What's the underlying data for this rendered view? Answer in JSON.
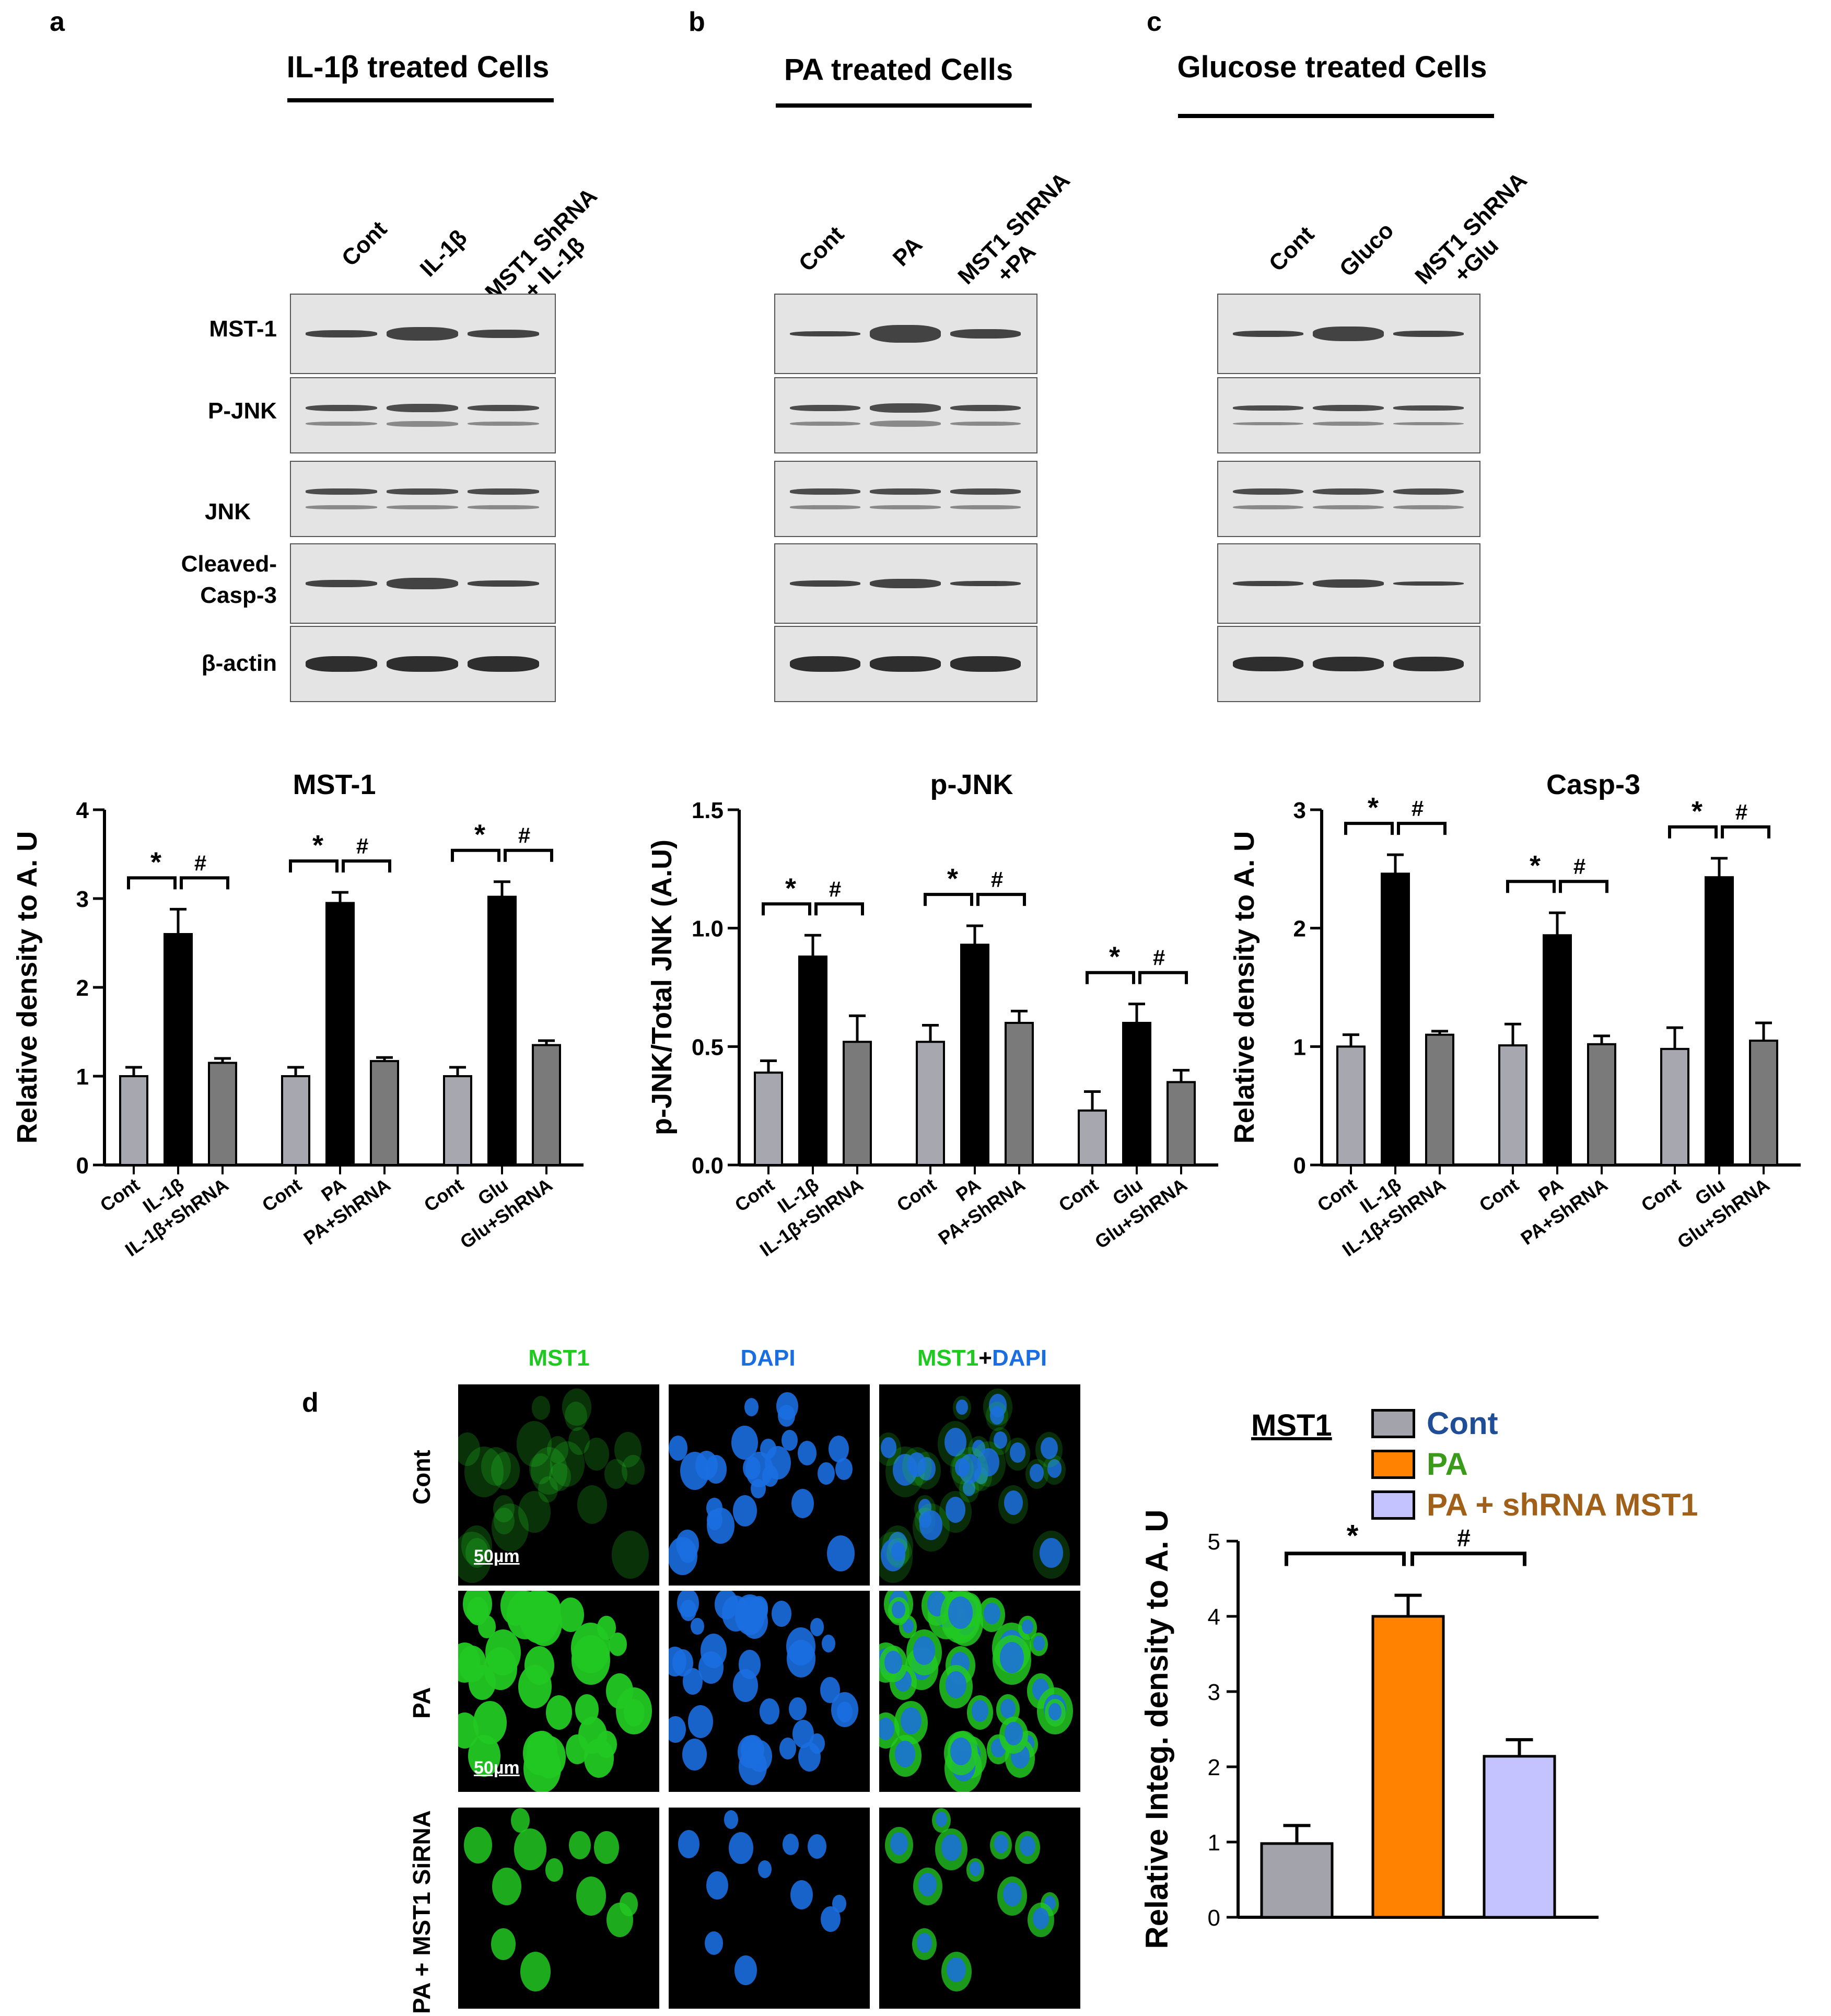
{
  "panels": {
    "a": {
      "letter": "a",
      "title": "IL-1β treated Cells",
      "lanes": [
        [
          "Cont"
        ],
        [
          "IL-1β"
        ],
        [
          "MST1 ShRNA",
          "+ IL-1β"
        ]
      ],
      "rows": [
        "MST-1",
        "P-JNK",
        "JNK",
        "Cleaved-",
        "Casp-3",
        "β-actin"
      ]
    },
    "b": {
      "letter": "b",
      "title": "PA treated Cells",
      "lanes": [
        [
          "Cont"
        ],
        [
          "PA"
        ],
        [
          "MST1 ShRNA",
          "+PA"
        ]
      ]
    },
    "c": {
      "letter": "c",
      "title": "Glucose treated Cells",
      "lanes": [
        [
          "Cont"
        ],
        [
          "Gluco"
        ],
        [
          "MST1 ShRNA",
          "+Glu"
        ]
      ]
    }
  },
  "colors": {
    "cont_bar": "#a7a7b0",
    "treat_bar": "#000000",
    "shrna_bar": "#7a7a7a",
    "d_cont": "#a3a3ab",
    "d_pa": "#ff8200",
    "d_shrna": "#c4c2ff",
    "legend_cont_text": "#1f4e96",
    "legend_pa_text": "#3a9a1a",
    "legend_shrna_text": "#a0601a",
    "mst1_green": "#22c822",
    "dapi_blue": "#1b6ee0"
  },
  "chart_data": [
    {
      "type": "bar",
      "title": "MST-1",
      "ylabel": "Relative density to A. U",
      "ylim": [
        0,
        4
      ],
      "yticks": [
        "0",
        "1",
        "2",
        "3",
        "4"
      ],
      "groups": [
        {
          "labels": [
            "Cont",
            "IL-1β",
            "IL-1β+ShRNA"
          ],
          "values": [
            1.0,
            2.6,
            1.15
          ],
          "errors": [
            0.1,
            0.28,
            0.05
          ],
          "sig": [
            "*",
            "#"
          ]
        },
        {
          "labels": [
            "Cont",
            "PA",
            "PA+ShRNA"
          ],
          "values": [
            1.0,
            2.95,
            1.17
          ],
          "errors": [
            0.1,
            0.12,
            0.04
          ],
          "sig": [
            "*",
            "#"
          ]
        },
        {
          "labels": [
            "Cont",
            "Glu",
            "Glu+ShRNA"
          ],
          "values": [
            1.0,
            3.02,
            1.35
          ],
          "errors": [
            0.1,
            0.17,
            0.05
          ],
          "sig": [
            "*",
            "#"
          ]
        }
      ]
    },
    {
      "type": "bar",
      "title": "p-JNK",
      "ylabel": "p-JNK/Total JNK (A.U)",
      "ylim": [
        0,
        1.5
      ],
      "yticks": [
        "0.0",
        "0.5",
        "1.0",
        "1.5"
      ],
      "groups": [
        {
          "labels": [
            "Cont",
            "IL-1β",
            "IL-1β+ShRNA"
          ],
          "values": [
            0.39,
            0.88,
            0.52
          ],
          "errors": [
            0.05,
            0.09,
            0.11
          ],
          "sig": [
            "*",
            "#"
          ]
        },
        {
          "labels": [
            "Cont",
            "PA",
            "PA+ShRNA"
          ],
          "values": [
            0.52,
            0.93,
            0.6
          ],
          "errors": [
            0.07,
            0.08,
            0.05
          ],
          "sig": [
            "*",
            "#"
          ]
        },
        {
          "labels": [
            "Cont",
            "Glu",
            "Glu+ShRNA"
          ],
          "values": [
            0.23,
            0.6,
            0.35
          ],
          "errors": [
            0.08,
            0.08,
            0.05
          ],
          "sig": [
            "*",
            "#"
          ]
        }
      ]
    },
    {
      "type": "bar",
      "title": "Casp-3",
      "ylabel": "Relative density to A. U",
      "ylim": [
        0,
        3
      ],
      "yticks": [
        "0",
        "1",
        "2",
        "3"
      ],
      "groups": [
        {
          "labels": [
            "Cont",
            "IL-1β",
            "IL-1β+ShRNA"
          ],
          "values": [
            1.0,
            2.46,
            1.1
          ],
          "errors": [
            0.1,
            0.16,
            0.03
          ],
          "sig": [
            "*",
            "#"
          ]
        },
        {
          "labels": [
            "Cont",
            "PA",
            "PA+ShRNA"
          ],
          "values": [
            1.01,
            1.94,
            1.02
          ],
          "errors": [
            0.18,
            0.19,
            0.07
          ],
          "sig": [
            "*",
            "#"
          ]
        },
        {
          "labels": [
            "Cont",
            "Glu",
            "Glu+ShRNA"
          ],
          "values": [
            0.98,
            2.43,
            1.05
          ],
          "errors": [
            0.18,
            0.16,
            0.15
          ],
          "sig": [
            "*",
            "#"
          ]
        }
      ]
    },
    {
      "type": "bar",
      "title": "MST1",
      "ylabel": "Relative Integ. density to A. U",
      "ylim": [
        0,
        5
      ],
      "yticks": [
        "0",
        "1",
        "2",
        "3",
        "4",
        "5"
      ],
      "series": [
        {
          "name": "Cont",
          "value": 0.98,
          "error": 0.24
        },
        {
          "name": "PA",
          "value": 4.0,
          "error": 0.28
        },
        {
          "name": "PA + shRNA MST1",
          "value": 2.14,
          "error": 0.22
        }
      ],
      "sig": [
        "*",
        "#"
      ]
    }
  ],
  "panel_d": {
    "letter": "d",
    "column_headers": {
      "mst1": "MST1",
      "dapi": "DAPI",
      "merge_a": "MST1",
      "merge_plus": "+",
      "merge_b": "DAPI"
    },
    "row_labels": [
      "Cont",
      "PA",
      "PA + MST1 SiRNA"
    ],
    "scale_bar": "50µm"
  }
}
